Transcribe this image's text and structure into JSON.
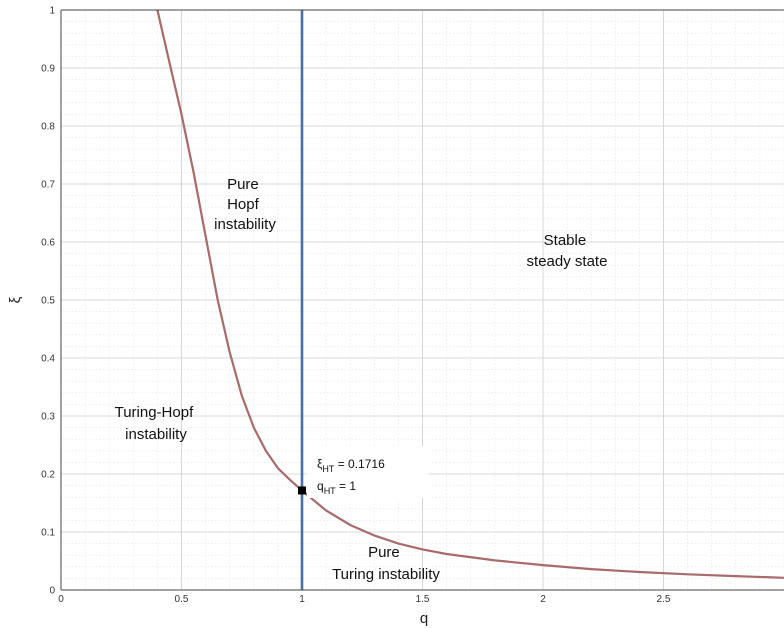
{
  "chart_data": {
    "type": "line",
    "xlabel": "q",
    "ylabel": "ξ",
    "xlim": [
      0,
      3
    ],
    "ylim": [
      0,
      1
    ],
    "x_ticks": [
      0,
      0.5,
      1,
      1.5,
      2,
      2.5
    ],
    "x_tick_labels": [
      "0",
      "0.5",
      "1",
      "1.5",
      "2",
      "2.5"
    ],
    "y_ticks": [
      0,
      0.1,
      0.2,
      0.3,
      0.4,
      0.5,
      0.6,
      0.7,
      0.8,
      0.9,
      1
    ],
    "y_tick_labels": [
      "0",
      "0.1",
      "0.2",
      "0.3",
      "0.4",
      "0.5",
      "0.6",
      "0.7",
      "0.8",
      "0.9",
      "1"
    ],
    "grid": true,
    "minor_grid": true,
    "series": [
      {
        "color": "#a86a6a",
        "x": [
          0.4,
          0.45,
          0.5,
          0.55,
          0.6,
          0.65,
          0.7,
          0.75,
          0.8,
          0.85,
          0.9,
          0.95,
          1.0,
          1.1,
          1.2,
          1.3,
          1.4,
          1.5,
          1.6,
          1.8,
          2.0,
          2.2,
          2.4,
          2.6,
          2.8,
          3.0
        ],
        "y": [
          1.0,
          0.91,
          0.82,
          0.72,
          0.61,
          0.5,
          0.41,
          0.335,
          0.28,
          0.24,
          0.21,
          0.19,
          0.1716,
          0.137,
          0.112,
          0.094,
          0.08,
          0.07,
          0.062,
          0.051,
          0.043,
          0.036,
          0.031,
          0.027,
          0.024,
          0.021
        ]
      }
    ],
    "vertical_line": {
      "x": 1,
      "color": "#4a6fa5"
    },
    "marker": {
      "x": 1,
      "y": 0.1716
    },
    "annotation": {
      "xi_sym": "ξ",
      "xi_sub": "HT",
      "xi_value": " = 0.1716",
      "q_sym": "q",
      "q_sub": "HT",
      "q_value": " = 1"
    },
    "regions": {
      "hopf": [
        "Pure",
        "Hopf",
        "instability"
      ],
      "stable": [
        "Stable",
        "steady state"
      ],
      "turing_hopf": [
        "Turing-Hopf",
        "instability"
      ],
      "turing": [
        "Pure",
        "Turing instability"
      ]
    }
  }
}
